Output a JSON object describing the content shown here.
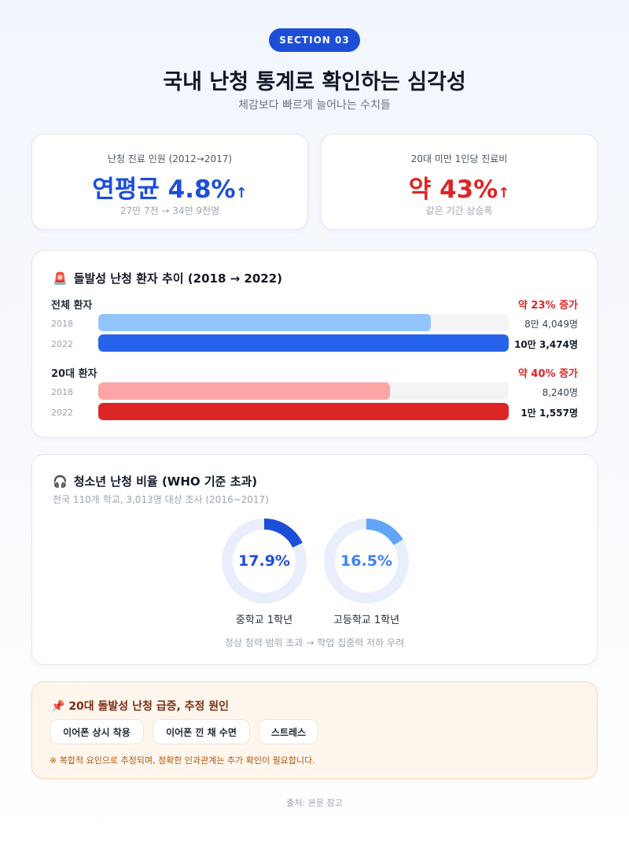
{
  "header": {
    "badge": "SECTION 03",
    "title": "국내 난청 통계로 확인하는 심각성",
    "subtitle": "체감보다 빠르게 늘어나는 수치들"
  },
  "stats": [
    {
      "label": "난청 진료 인원 (2012→2017)",
      "value": "연평균 4.8%",
      "arrow": "↑",
      "note": "27만 7천 → 34만 9천명",
      "color": "#1d4ed8"
    },
    {
      "label": "20대 미만 1인당 진료비",
      "value": "약 43%",
      "arrow": "↑",
      "note": "같은 기간 상승폭",
      "color": "#dc2626"
    }
  ],
  "trend": {
    "icon": "siren-icon",
    "icon_glyph": "🚨",
    "title": "돌발성 난청 환자 추이 (2018 → 2022)",
    "groups": [
      {
        "name": "전체 환자",
        "change": "약 23% 증가",
        "rows": [
          {
            "year": "2018",
            "fraction": 0.81,
            "count": "8만 4,049명",
            "color": "#93c5fd"
          },
          {
            "year": "2022",
            "fraction": 1.0,
            "count": "10만 3,474명",
            "color": "#2563eb"
          }
        ]
      },
      {
        "name": "20대 환자",
        "change": "약 40% 증가",
        "rows": [
          {
            "year": "2018",
            "fraction": 0.71,
            "count": "8,240명",
            "color": "#fca5a5"
          },
          {
            "year": "2022",
            "fraction": 1.0,
            "count": "1만 1,557명",
            "color": "#dc2626"
          }
        ]
      }
    ]
  },
  "youth": {
    "icon": "headphones-icon",
    "icon_glyph": "🎧",
    "title": "청소년 난청 비율 (WHO 기준 초과)",
    "survey": "전국 110개 학교, 3,013명 대상 조사 (2016~2017)",
    "donuts": [
      {
        "value": "17.9%",
        "fraction": 0.179,
        "label": "중학교 1학년",
        "color": "#1d4ed8",
        "text_color": "#1d4ed8"
      },
      {
        "value": "16.5%",
        "fraction": 0.165,
        "label": "고등학교 1학년",
        "color": "#60a5fa",
        "text_color": "#3b82f6"
      }
    ],
    "note": "정상 청력 범위 초과 → 학업 집중력 저하 우려"
  },
  "causes": {
    "icon": "pin-icon",
    "icon_glyph": "📌",
    "title": "20대 돌발성 난청 급증, 추정 원인",
    "chips": [
      "이어폰 상시 착용",
      "이어폰 낀 채 수면",
      "스트레스"
    ],
    "disclaimer": "※ 복합적 요인으로 추정되며, 정확한 인과관계는 추가 확인이 필요합니다."
  },
  "source": "출처: 본문 참고"
}
